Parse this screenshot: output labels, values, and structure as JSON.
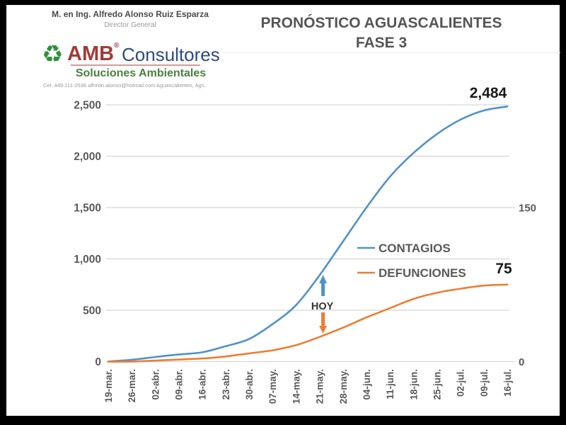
{
  "header": {
    "author_line": "M. en Ing. Alfredo Alonso Ruiz Esparza",
    "author_title": "Director General",
    "logo": {
      "recycle_icon": "recycle-icon",
      "brand": "AMB",
      "brand_reg": "®",
      "brand_suffix": "Consultores",
      "tagline": "Soluciones Ambientales",
      "contact": "Cel. 449-111-2536    alfredo.alonso@hotmail.com    Aguascalientes, Ags."
    },
    "title_line1": "PRONÓSTICO AGUASCALIENTES",
    "title_line2": "FASE 3"
  },
  "chart_data": {
    "type": "line",
    "title": "PRONÓSTICO AGUASCALIENTES FASE 3",
    "categories": [
      "19-mar.",
      "26-mar.",
      "02-abr.",
      "09-abr.",
      "16-abr.",
      "23-abr.",
      "30-abr.",
      "07-may.",
      "14-may.",
      "21-may.",
      "28-may.",
      "04-jun.",
      "11-jun.",
      "18-jun.",
      "25-jun.",
      "02-jul.",
      "09-jul.",
      "16-jul."
    ],
    "series": [
      {
        "name": "CONTAGIOS",
        "axis": "left",
        "color": "#4f92c9",
        "values": [
          1,
          18,
          45,
          70,
          90,
          150,
          220,
          365,
          550,
          840,
          1170,
          1500,
          1800,
          2030,
          2215,
          2355,
          2445,
          2484
        ],
        "end_label": "2,484"
      },
      {
        "name": "DEFUNCIONES",
        "axis": "right",
        "color": "#ed7d31",
        "values": [
          0,
          0,
          1,
          2,
          3,
          5,
          8,
          11,
          16,
          24,
          33,
          43,
          52,
          61,
          67,
          71,
          74,
          75
        ],
        "end_label": "75"
      }
    ],
    "left_axis": {
      "min": 0,
      "max": 2500,
      "ticks": [
        {
          "label": "2,500",
          "value": 2500
        },
        {
          "label": "2,000",
          "value": 2000
        },
        {
          "label": "1,500",
          "value": 1500
        },
        {
          "label": "1,000",
          "value": 1000
        },
        {
          "label": "500",
          "value": 500
        },
        {
          "label": "0",
          "value": 0
        }
      ]
    },
    "right_axis": {
      "left_equiv_factor": 10,
      "ticks": [
        {
          "label": "150",
          "value": 150
        },
        {
          "label": "0",
          "value": 0
        }
      ]
    },
    "annotation": {
      "label": "HOY",
      "category": "21-may."
    },
    "legend": {
      "position": "inside-right",
      "entries": [
        "CONTAGIOS",
        "DEFUNCIONES"
      ]
    },
    "grid": true,
    "colors": {
      "grid": "#d6d6d6",
      "axis_text": "#595959",
      "data_label": "#1a1a1a",
      "annotation_text": "#333333"
    }
  }
}
